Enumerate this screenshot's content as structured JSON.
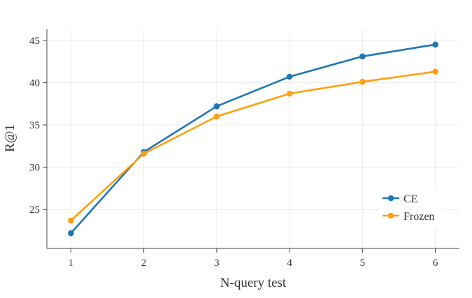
{
  "chart_data": {
    "type": "line",
    "title": "",
    "xlabel": "N-query test",
    "ylabel": "R@1",
    "x": [
      1,
      2,
      3,
      4,
      5,
      6
    ],
    "xticks": [
      "1",
      "2",
      "3",
      "4",
      "5",
      "6"
    ],
    "yticks": [
      "25",
      "30",
      "35",
      "40",
      "45"
    ],
    "xlim": [
      0.67,
      6.33
    ],
    "ylim": [
      20.4,
      46.3
    ],
    "grid": true,
    "legend_position": "bottom-right",
    "series": [
      {
        "name": "CE",
        "color": "#1f77b4",
        "values": [
          22.2,
          31.8,
          37.2,
          40.7,
          43.1,
          44.5
        ]
      },
      {
        "name": "Frozen",
        "color": "#ff9f0e",
        "values": [
          23.7,
          31.6,
          36.0,
          38.7,
          40.1,
          41.3
        ]
      }
    ]
  }
}
